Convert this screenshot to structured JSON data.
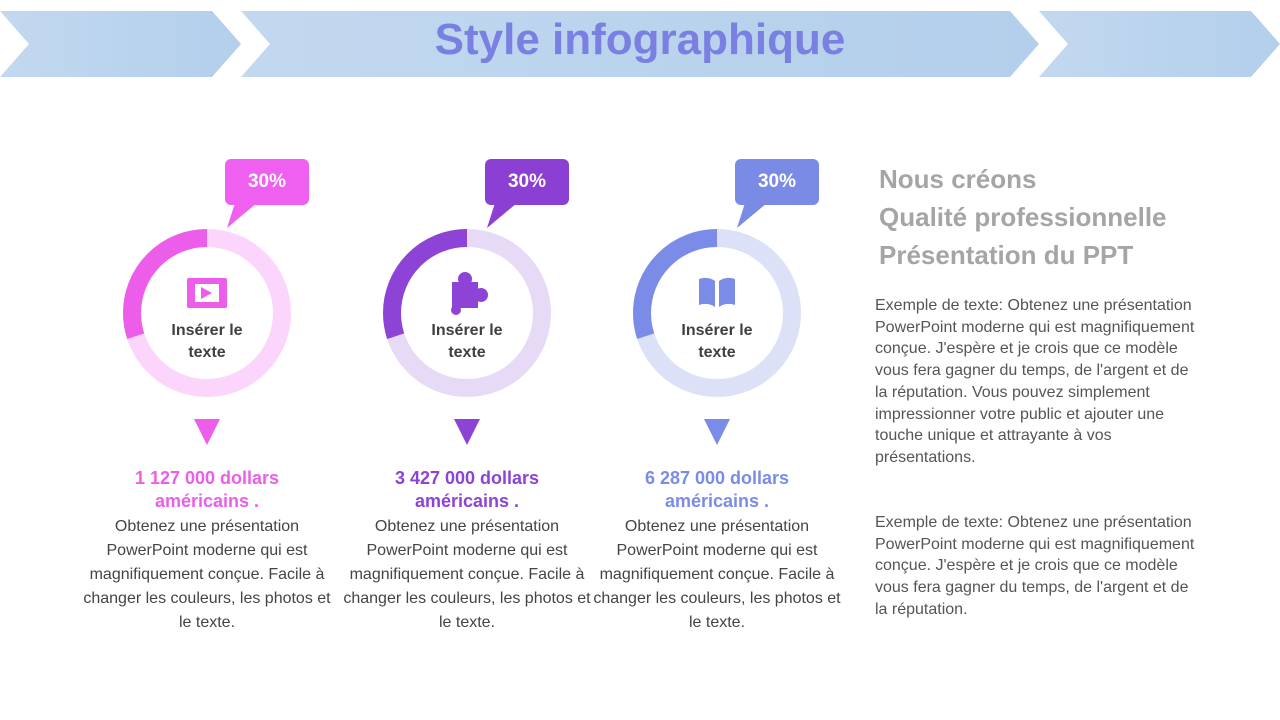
{
  "header": {
    "title": "Style infographique"
  },
  "items": [
    {
      "value": 30,
      "label": "30%",
      "center": "Insérer le texte",
      "amount": "1 127 000 dollars américains .",
      "text": "Obtenez une présentation PowerPoint moderne qui est magnifiquement conçue. Facile à changer les couleurs, les photos et le texte.",
      "color": "#ec5eea",
      "light": "#fbd5fb",
      "box": "#ef5ff0"
    },
    {
      "value": 30,
      "label": "30%",
      "center": "Insérer le texte",
      "amount": "3 427 000 dollars américains .",
      "text": "Obtenez une présentation PowerPoint moderne qui est magnifiquement conçue. Facile à changer les couleurs, les photos et le texte.",
      "color": "#8d44d6",
      "light": "#e7daf7",
      "box": "#8b3fd3"
    },
    {
      "value": 30,
      "label": "30%",
      "center": "Insérer le texte",
      "amount": "6 287 000 dollars américains .",
      "text": "Obtenez une présentation PowerPoint moderne qui est magnifiquement conçue. Facile à changer les couleurs, les photos et le texte.",
      "color": "#7b8ce8",
      "light": "#dce1f8",
      "box": "#7a8be6"
    }
  ],
  "side": {
    "heading": [
      "Nous créons",
      "Qualité professionnelle",
      "Présentation du PPT"
    ],
    "paragraphs": [
      "Exemple de texte: Obtenez une présentation PowerPoint moderne qui est magnifiquement conçue. J'espère et je crois que ce modèle vous fera gagner du temps, de l'argent et de la réputation. Vous pouvez simplement impressionner votre public et ajouter une touche unique et attrayante à vos présentations.",
      "Exemple de texte: Obtenez une présentation PowerPoint moderne qui est magnifiquement conçue. J'espère et je crois que ce modèle vous fera gagner du temps, de l'argent et de la réputation."
    ]
  }
}
